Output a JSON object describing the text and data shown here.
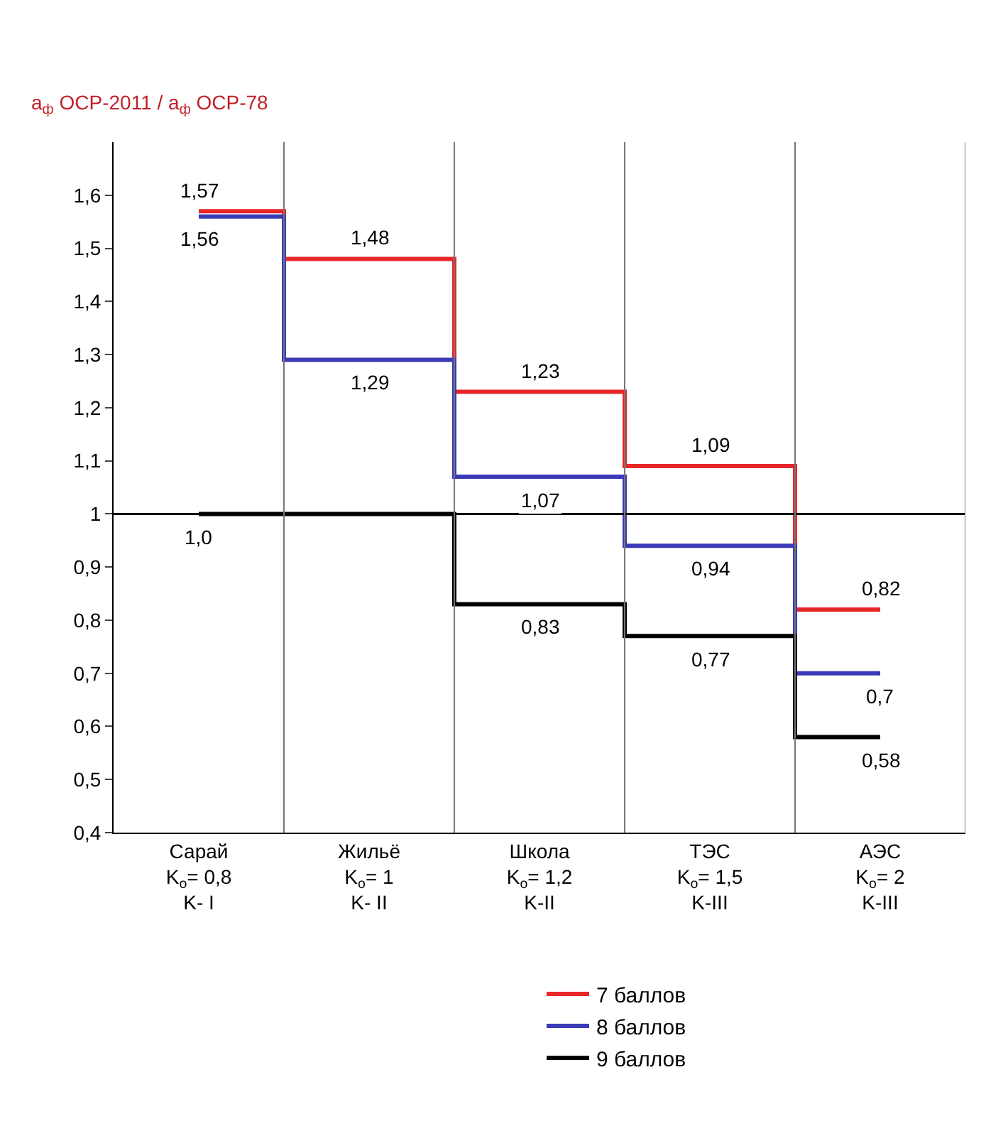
{
  "chart_data": {
    "type": "step",
    "ylabel": "a$_{ф}$ ОСР-2011 / a$_{ф}$ ОСР-78",
    "categories": [
      "Сарай\nK$_{о}$= 0,8\nK- I",
      "Жильё\nK$_{о}$= 1\nK- II",
      "Школа\nK$_{о}$= 1,2\nK-II",
      "ТЭС\nK$_{о}$= 1,5\nK-III",
      "АЭС\nK$_{о}$= 2\nK-III"
    ],
    "series": [
      {
        "name": "7 баллов",
        "color": "#e8262a",
        "values": [
          1.57,
          1.48,
          1.23,
          1.09,
          0.82
        ],
        "value_labels": [
          "1,57",
          "1,48",
          "1,23",
          "1,09",
          "0,82"
        ]
      },
      {
        "name": "8 баллов",
        "color": "#3a3ab8",
        "values": [
          1.56,
          1.29,
          1.07,
          0.94,
          0.7
        ],
        "value_labels": [
          "1,56",
          "1,29",
          "1,07",
          "0,94",
          "0,7"
        ]
      },
      {
        "name": "9 баллов",
        "color": "#000000",
        "values": [
          1.0,
          1.0,
          0.83,
          0.77,
          0.58
        ],
        "value_labels": [
          "1,0",
          null,
          "0,83",
          "0,77",
          "0,58"
        ]
      }
    ],
    "ylim": [
      0.4,
      1.7
    ],
    "yticks": [
      {
        "value": 0.4,
        "label": "0,4"
      },
      {
        "value": 0.5,
        "label": "0,5"
      },
      {
        "value": 0.6,
        "label": "0,6"
      },
      {
        "value": 0.7,
        "label": "0,7"
      },
      {
        "value": 0.8,
        "label": "0,8"
      },
      {
        "value": 0.9,
        "label": "0,9"
      },
      1,
      {
        "value": 1.1,
        "label": "1,1"
      },
      {
        "value": 1.2,
        "label": "1,2"
      },
      {
        "value": 1.3,
        "label": "1,3"
      },
      {
        "value": 1.4,
        "label": "1,4"
      },
      {
        "value": 1.5,
        "label": "1,5"
      },
      {
        "value": 1.6,
        "label": "1,6"
      }
    ],
    "ref_lines": [
      {
        "axis": "y",
        "value": 1,
        "color": "#000000"
      }
    ],
    "legend": "bottom",
    "line_style": "solid"
  }
}
